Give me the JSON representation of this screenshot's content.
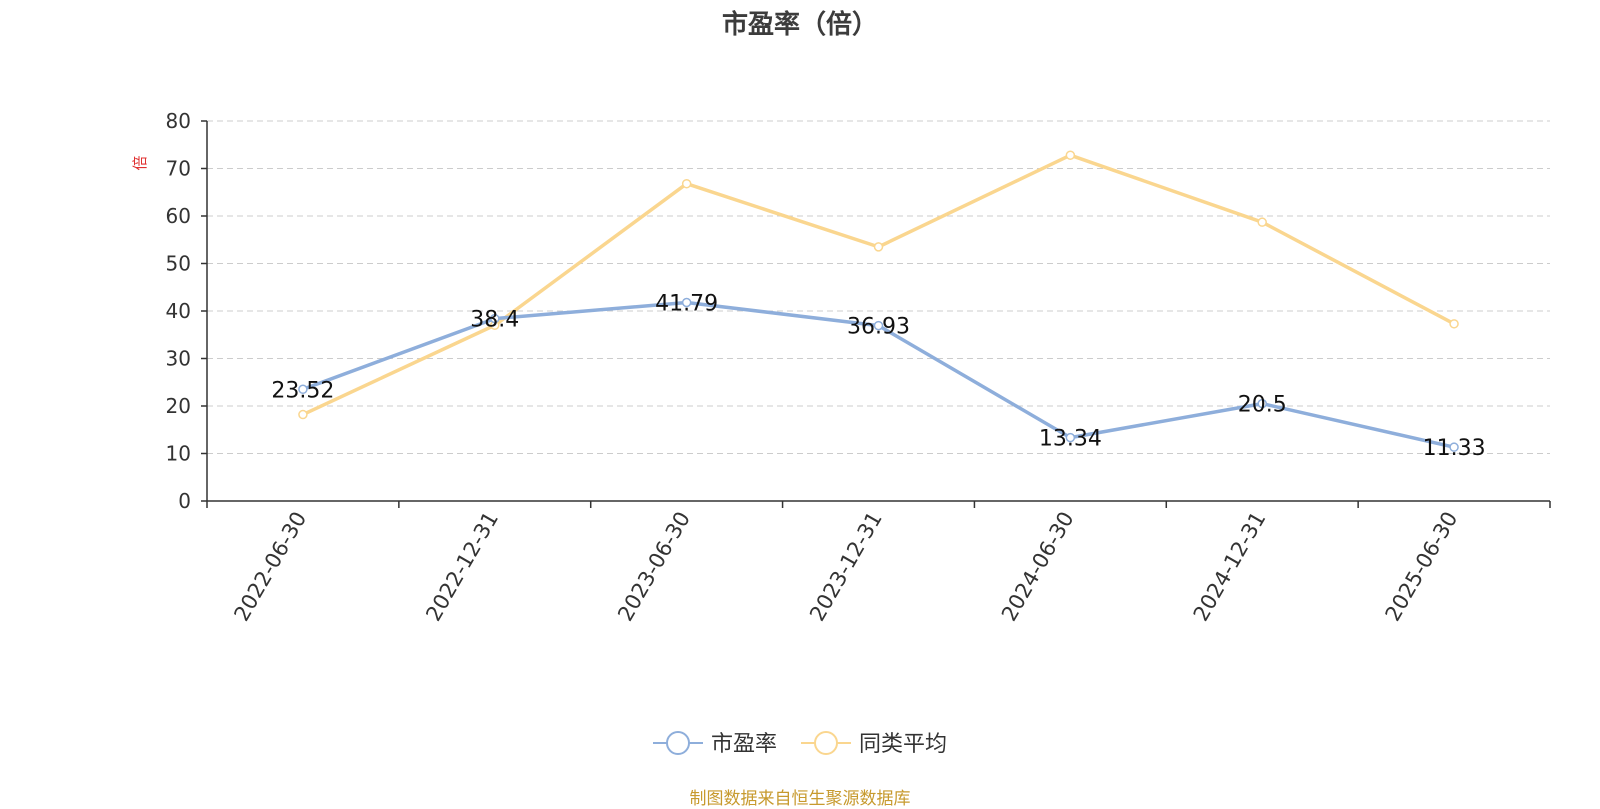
{
  "chart_data": {
    "type": "line",
    "title": "市盈率（倍）",
    "ylabel": "倍",
    "xlabel": "",
    "categories": [
      "2022-06-30",
      "2022-12-31",
      "2023-06-30",
      "2023-12-31",
      "2024-06-30",
      "2024-12-31",
      "2025-06-30"
    ],
    "ylim": [
      0,
      80
    ],
    "yticks": [
      0,
      10,
      20,
      30,
      40,
      50,
      60,
      70,
      80
    ],
    "grid": true,
    "legend_position": "bottom-center",
    "series": [
      {
        "name": "市盈率",
        "values": [
          23.52,
          38.4,
          41.79,
          36.93,
          13.34,
          20.5,
          11.33
        ],
        "color": "#8eaedb",
        "show_labels": true
      },
      {
        "name": "同类平均",
        "values": [
          18.2,
          37.0,
          66.8,
          53.5,
          72.8,
          58.7,
          37.3
        ],
        "color": "#fad68f",
        "show_labels": false
      }
    ]
  },
  "footer": {
    "source_note": "制图数据来自恒生聚源数据库"
  },
  "colors": {
    "axis": "#333333",
    "grid": "#cccccc",
    "ylabel": "#e03030",
    "title": "#3c3c3c",
    "footer": "#c79a2e"
  }
}
